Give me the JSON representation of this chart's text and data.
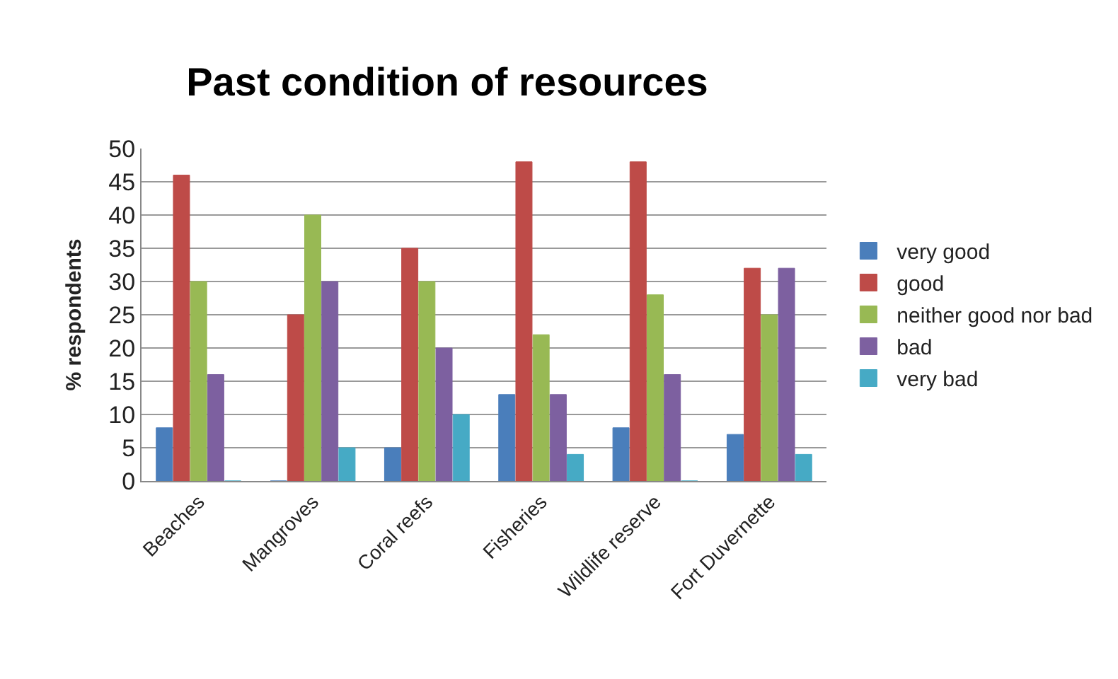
{
  "chart_data": {
    "type": "bar",
    "title": "Past condition of resources",
    "ylabel": "% respondents",
    "categories": [
      "Beaches",
      "Mangroves",
      "Coral reefs",
      "Fisheries",
      "Wildlife reserve",
      "Fort Duvernette"
    ],
    "series": [
      {
        "name": "very good",
        "color": "#4a7ebb",
        "values": [
          8,
          0,
          5,
          13,
          8,
          7
        ]
      },
      {
        "name": "good",
        "color": "#be4b48",
        "values": [
          46,
          25,
          35,
          48,
          48,
          32
        ]
      },
      {
        "name": "neither good nor bad",
        "color": "#98b954",
        "values": [
          30,
          40,
          30,
          22,
          28,
          25
        ]
      },
      {
        "name": "bad",
        "color": "#7d60a0",
        "values": [
          16,
          30,
          20,
          13,
          16,
          32
        ]
      },
      {
        "name": "very bad",
        "color": "#46aac5",
        "values": [
          0,
          5,
          10,
          4,
          0,
          4
        ]
      }
    ],
    "ylim": [
      0,
      50
    ],
    "yticks": [
      0,
      5,
      10,
      15,
      20,
      25,
      30,
      35,
      40,
      45,
      50
    ],
    "grid": "y",
    "legend": "right"
  }
}
